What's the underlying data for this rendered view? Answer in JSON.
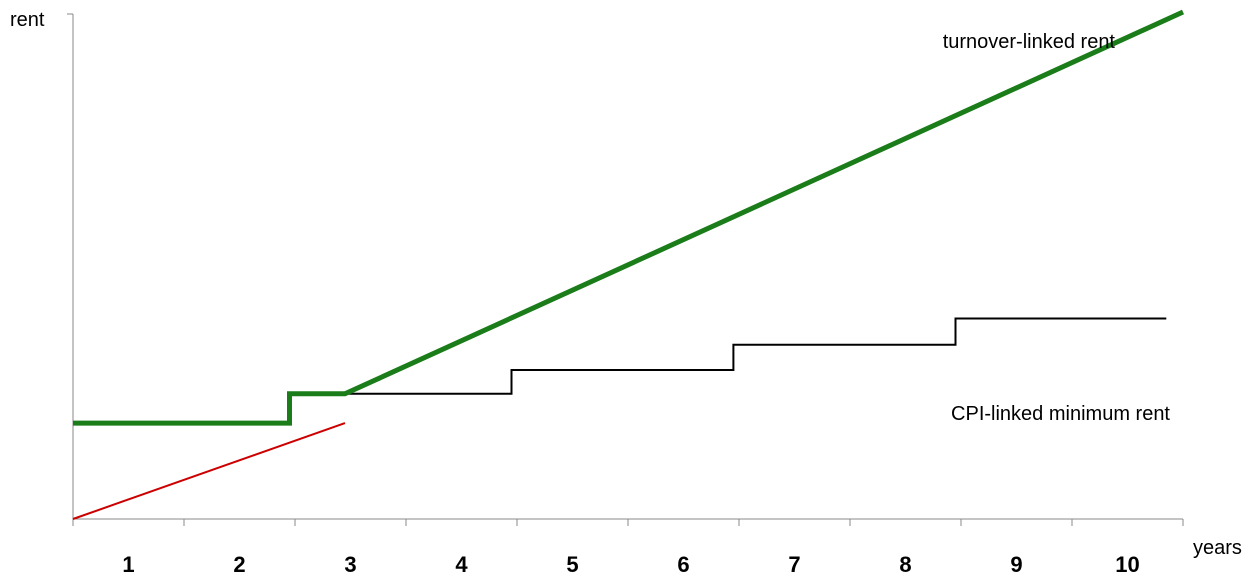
{
  "chart_data": {
    "type": "line",
    "xlabel": "years",
    "ylabel": "rent",
    "categories": [
      "1",
      "2",
      "3",
      "4",
      "5",
      "6",
      "7",
      "8",
      "9",
      "10"
    ],
    "xlim": [
      0,
      10
    ],
    "ylim": [
      0,
      10
    ],
    "grid": false,
    "legend": "none",
    "series": [
      {
        "key": "turnover_thin",
        "color": "#cc0000",
        "points": [
          [
            0,
            0
          ],
          [
            2.45,
            1.9
          ]
        ]
      },
      {
        "key": "min_rent_steps",
        "color": "#000000",
        "points": [
          [
            2.45,
            2.48
          ],
          [
            3.95,
            2.48
          ],
          [
            3.95,
            2.95
          ],
          [
            5.95,
            2.95
          ],
          [
            5.95,
            3.45
          ],
          [
            7.95,
            3.45
          ],
          [
            7.95,
            3.97
          ],
          [
            9.85,
            3.97
          ]
        ]
      },
      {
        "key": "effective_rent",
        "color": "#1a7d1a",
        "points": [
          [
            0,
            1.9
          ],
          [
            1.95,
            1.9
          ],
          [
            1.95,
            2.48
          ],
          [
            2.45,
            2.48
          ],
          [
            10,
            10.04
          ]
        ]
      }
    ],
    "annotations": [
      {
        "key": "turnover",
        "text": "turnover-linked rent",
        "x": 9.2,
        "y": 9.6
      },
      {
        "key": "cpi",
        "text": "CPI-linked minimum rent",
        "x": 9.2,
        "y": 2.15
      }
    ]
  }
}
